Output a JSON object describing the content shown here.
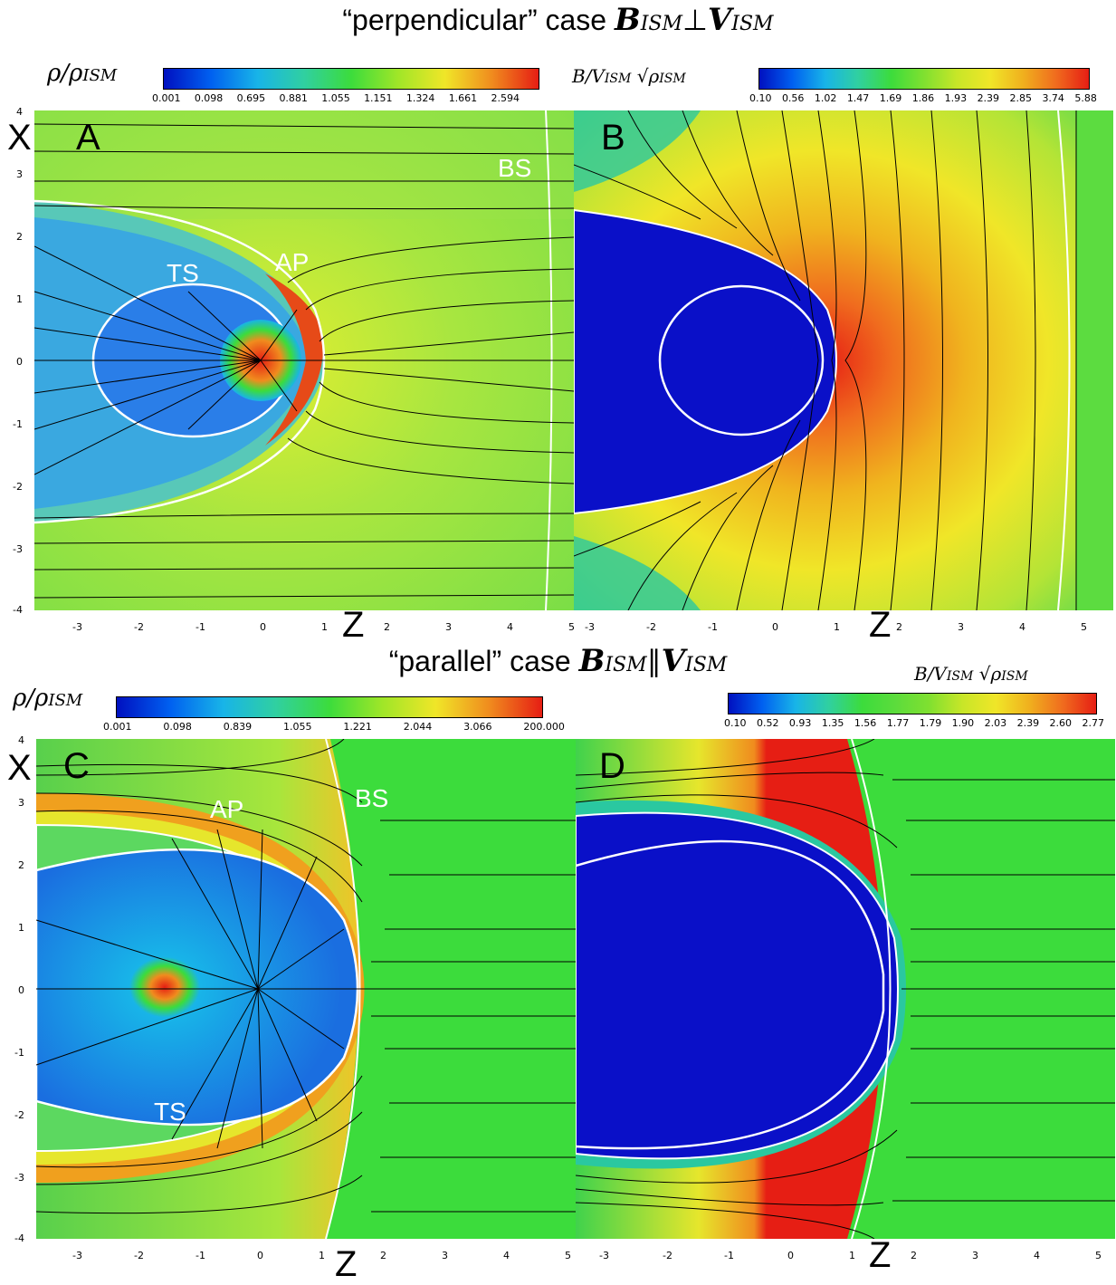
{
  "top": {
    "title_text": "“perpendicular” case",
    "title_math": "B",
    "title_math_sub": "ISM",
    "title_op": "⊥",
    "title_math2": "V",
    "title_math2_sub": "ISM",
    "density_label": "ρ/ρ",
    "density_label_sub": "ISM",
    "density_ticks": [
      "0.001",
      "0.098",
      "0.695",
      "0.881",
      "1.055",
      "1.151",
      "1.324",
      "1.661",
      "2.594"
    ],
    "field_label": "B/V",
    "field_label_sub": "ISM",
    "field_label_root": "√ρ",
    "field_label_root_sub": "ISM",
    "field_ticks": [
      "0.10",
      "0.56",
      "1.02",
      "1.47",
      "1.69",
      "1.86",
      "1.93",
      "2.39",
      "2.85",
      "3.74",
      "5.88"
    ]
  },
  "bottom": {
    "title_text": "“parallel” case",
    "title_math": "B",
    "title_math_sub": "ISM",
    "title_op": "∥",
    "title_math2": "V",
    "title_math2_sub": "ISM",
    "density_label": "ρ/ρ",
    "density_label_sub": "ISM",
    "density_ticks": [
      "0.001",
      "0.098",
      "0.839",
      "1.055",
      "1.221",
      "2.044",
      "3.066",
      "200.000"
    ],
    "field_label": "B/V",
    "field_label_sub": "ISM",
    "field_label_root": "√ρ",
    "field_label_root_sub": "ISM",
    "field_ticks": [
      "0.10",
      "0.52",
      "0.93",
      "1.35",
      "1.56",
      "1.77",
      "1.79",
      "1.90",
      "2.03",
      "2.39",
      "2.60",
      "2.77"
    ]
  },
  "panels": {
    "A": "A",
    "B": "B",
    "C": "C",
    "D": "D"
  },
  "labels": {
    "bs_top": "BS",
    "ts_top": "TS",
    "ap_top": "AP",
    "bs_bottom": "BS",
    "ts_bottom": "TS",
    "ap_bottom": "AP"
  },
  "axes": {
    "x_label": "X",
    "z_label": "Z",
    "x_ticks": [
      "4",
      "3",
      "2",
      "1",
      "0",
      "-1",
      "-2",
      "-3",
      "-4"
    ],
    "z_ticks": [
      "-3",
      "-2",
      "-1",
      "0",
      "1",
      "2",
      "3",
      "4",
      "5"
    ]
  },
  "colors": {
    "blue": "#0a14c8",
    "cyan": "#18b4e8",
    "green": "#3cdc3c",
    "yellow": "#f0e628",
    "orange": "#f08c1e",
    "red": "#e61e14"
  }
}
